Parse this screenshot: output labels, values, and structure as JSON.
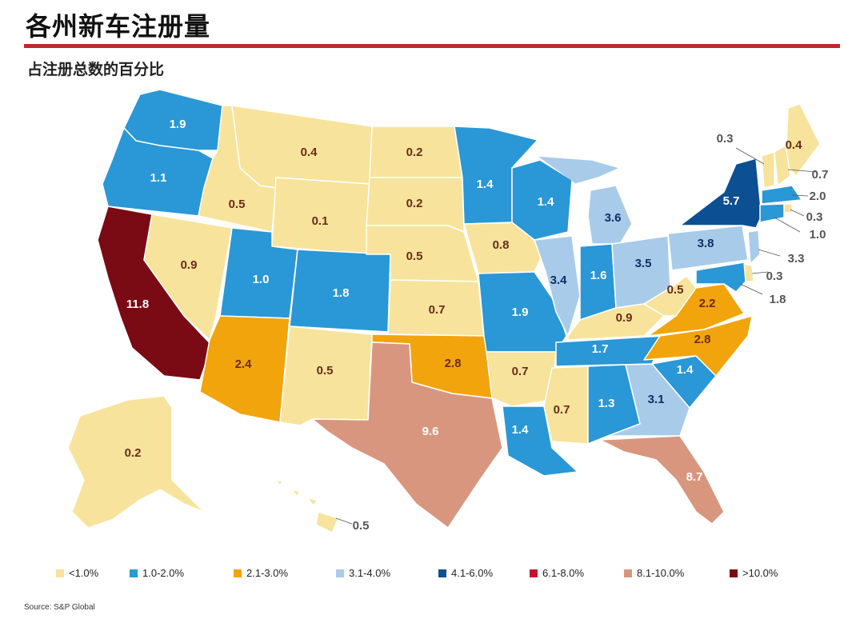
{
  "header": {
    "title": "各州新车注册量",
    "subtitle": "占注册总数的百分比"
  },
  "source": "Source: S&P Global",
  "legend": [
    {
      "label": "<1.0%",
      "color": "#f7e39b"
    },
    {
      "label": "1.0-2.0%",
      "color": "#2a97d6"
    },
    {
      "label": "2.1-3.0%",
      "color": "#f2a40c"
    },
    {
      "label": "3.1-4.0%",
      "color": "#a9cbea"
    },
    {
      "label": "4.1-6.0%",
      "color": "#0c4f93"
    },
    {
      "label": "6.1-8.0%",
      "color": "#c8102e"
    },
    {
      "label": "8.1-10.0%",
      "color": "#d9967e"
    },
    {
      "label": ">10.0%",
      "color": "#7a0a14"
    }
  ],
  "states": [
    {
      "id": "WA",
      "value": "1.9"
    },
    {
      "id": "OR",
      "value": "1.1"
    },
    {
      "id": "CA",
      "value": "11.8"
    },
    {
      "id": "ID",
      "value": "0.5"
    },
    {
      "id": "NV",
      "value": "0.9"
    },
    {
      "id": "MT",
      "value": "0.4"
    },
    {
      "id": "WY",
      "value": "0.1"
    },
    {
      "id": "UT",
      "value": "1.0"
    },
    {
      "id": "AZ",
      "value": "2.4"
    },
    {
      "id": "CO",
      "value": "1.8"
    },
    {
      "id": "NM",
      "value": "0.5"
    },
    {
      "id": "ND",
      "value": "0.2"
    },
    {
      "id": "SD",
      "value": "0.2"
    },
    {
      "id": "NE",
      "value": "0.5"
    },
    {
      "id": "KS",
      "value": "0.7"
    },
    {
      "id": "OK",
      "value": "2.8"
    },
    {
      "id": "TX",
      "value": "9.6"
    },
    {
      "id": "MN",
      "value": "1.4"
    },
    {
      "id": "IA",
      "value": "0.8"
    },
    {
      "id": "MO",
      "value": "1.9"
    },
    {
      "id": "AR",
      "value": "0.7"
    },
    {
      "id": "LA",
      "value": "1.4"
    },
    {
      "id": "WI",
      "value": "1.4"
    },
    {
      "id": "IL",
      "value": "3.4"
    },
    {
      "id": "MI",
      "value": "3.6"
    },
    {
      "id": "IN",
      "value": "1.6"
    },
    {
      "id": "OH",
      "value": "3.5"
    },
    {
      "id": "KY",
      "value": "0.9"
    },
    {
      "id": "TN",
      "value": "1.7"
    },
    {
      "id": "MS",
      "value": "0.7"
    },
    {
      "id": "AL",
      "value": "1.3"
    },
    {
      "id": "GA",
      "value": "3.1"
    },
    {
      "id": "FL",
      "value": "8.7"
    },
    {
      "id": "SC",
      "value": "1.4"
    },
    {
      "id": "NC",
      "value": "2.8"
    },
    {
      "id": "VA",
      "value": "2.2"
    },
    {
      "id": "WV",
      "value": "0.5"
    },
    {
      "id": "PA",
      "value": "3.8"
    },
    {
      "id": "NY",
      "value": "5.7"
    },
    {
      "id": "ME",
      "value": "0.4"
    },
    {
      "id": "VT",
      "value": "0.3"
    },
    {
      "id": "NH",
      "value": "0.7"
    },
    {
      "id": "MA",
      "value": "2.0"
    },
    {
      "id": "RI",
      "value": "0.3"
    },
    {
      "id": "CT",
      "value": "1.0"
    },
    {
      "id": "NJ",
      "value": "3.3"
    },
    {
      "id": "DE",
      "value": "0.3"
    },
    {
      "id": "MD",
      "value": "1.8"
    },
    {
      "id": "AK",
      "value": "0.2"
    },
    {
      "id": "HI",
      "value": "0.5"
    }
  ]
}
